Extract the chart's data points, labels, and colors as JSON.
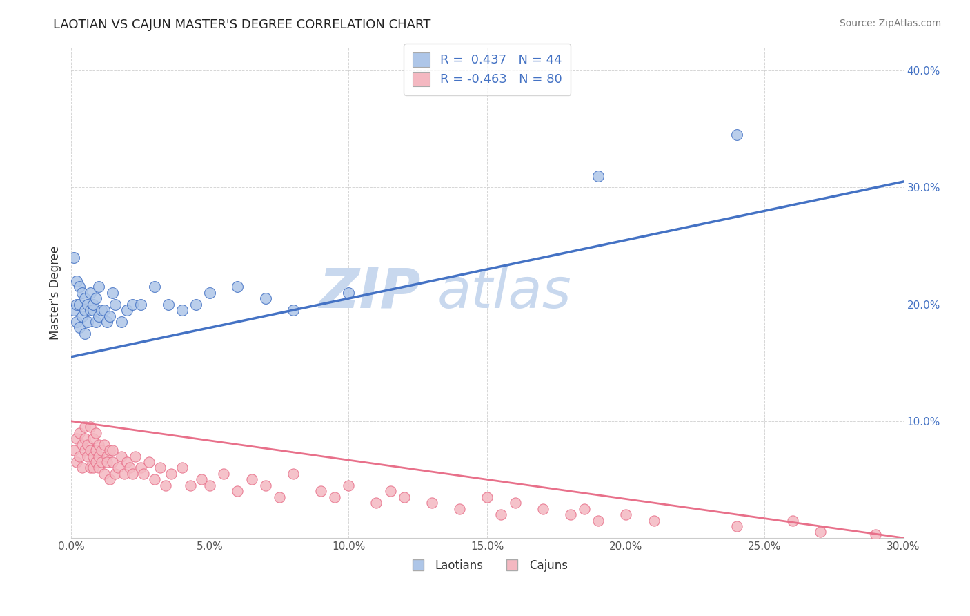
{
  "title": "LAOTIAN VS CAJUN MASTER'S DEGREE CORRELATION CHART",
  "source": "Source: ZipAtlas.com",
  "ylabel": "Master's Degree",
  "xlim": [
    0.0,
    0.3
  ],
  "ylim": [
    0.0,
    0.42
  ],
  "xticks": [
    0.0,
    0.05,
    0.1,
    0.15,
    0.2,
    0.25,
    0.3
  ],
  "yticks": [
    0.0,
    0.1,
    0.2,
    0.3,
    0.4
  ],
  "xtick_labels": [
    "0.0%",
    "5.0%",
    "10.0%",
    "15.0%",
    "20.0%",
    "25.0%",
    "30.0%"
  ],
  "ytick_labels": [
    "",
    "10.0%",
    "20.0%",
    "30.0%",
    "40.0%"
  ],
  "laotian_color": "#aec6e8",
  "cajun_color": "#f4b8c1",
  "line_laotian": "#4472c4",
  "line_cajun": "#e8708a",
  "watermark_color": "#d0dff0",
  "R_laotian": 0.437,
  "N_laotian": 44,
  "R_cajun": -0.463,
  "N_cajun": 80,
  "laotian_line_x0": 0.0,
  "laotian_line_y0": 0.155,
  "laotian_line_x1": 0.3,
  "laotian_line_y1": 0.305,
  "cajun_line_x0": 0.0,
  "cajun_line_y0": 0.1,
  "cajun_line_x1": 0.3,
  "cajun_line_y1": 0.0,
  "laotian_x": [
    0.001,
    0.001,
    0.002,
    0.002,
    0.002,
    0.003,
    0.003,
    0.003,
    0.004,
    0.004,
    0.005,
    0.005,
    0.005,
    0.006,
    0.006,
    0.007,
    0.007,
    0.008,
    0.008,
    0.009,
    0.009,
    0.01,
    0.01,
    0.011,
    0.012,
    0.013,
    0.014,
    0.015,
    0.016,
    0.018,
    0.02,
    0.022,
    0.025,
    0.03,
    0.035,
    0.04,
    0.045,
    0.05,
    0.06,
    0.07,
    0.08,
    0.1,
    0.19,
    0.24
  ],
  "laotian_y": [
    0.195,
    0.24,
    0.22,
    0.185,
    0.2,
    0.215,
    0.18,
    0.2,
    0.19,
    0.21,
    0.175,
    0.205,
    0.195,
    0.2,
    0.185,
    0.195,
    0.21,
    0.195,
    0.2,
    0.185,
    0.205,
    0.19,
    0.215,
    0.195,
    0.195,
    0.185,
    0.19,
    0.21,
    0.2,
    0.185,
    0.195,
    0.2,
    0.2,
    0.215,
    0.2,
    0.195,
    0.2,
    0.21,
    0.215,
    0.205,
    0.195,
    0.21,
    0.31,
    0.345
  ],
  "cajun_x": [
    0.001,
    0.002,
    0.002,
    0.003,
    0.003,
    0.004,
    0.004,
    0.005,
    0.005,
    0.005,
    0.006,
    0.006,
    0.007,
    0.007,
    0.007,
    0.008,
    0.008,
    0.008,
    0.009,
    0.009,
    0.009,
    0.01,
    0.01,
    0.01,
    0.011,
    0.011,
    0.012,
    0.012,
    0.013,
    0.013,
    0.014,
    0.014,
    0.015,
    0.015,
    0.016,
    0.017,
    0.018,
    0.019,
    0.02,
    0.021,
    0.022,
    0.023,
    0.025,
    0.026,
    0.028,
    0.03,
    0.032,
    0.034,
    0.036,
    0.04,
    0.043,
    0.047,
    0.05,
    0.055,
    0.06,
    0.065,
    0.07,
    0.075,
    0.08,
    0.09,
    0.095,
    0.1,
    0.11,
    0.115,
    0.12,
    0.13,
    0.14,
    0.15,
    0.155,
    0.16,
    0.17,
    0.18,
    0.185,
    0.19,
    0.2,
    0.21,
    0.24,
    0.26,
    0.27,
    0.29
  ],
  "cajun_y": [
    0.075,
    0.085,
    0.065,
    0.09,
    0.07,
    0.08,
    0.06,
    0.085,
    0.075,
    0.095,
    0.07,
    0.08,
    0.075,
    0.06,
    0.095,
    0.07,
    0.085,
    0.06,
    0.075,
    0.065,
    0.09,
    0.08,
    0.07,
    0.06,
    0.075,
    0.065,
    0.08,
    0.055,
    0.07,
    0.065,
    0.075,
    0.05,
    0.065,
    0.075,
    0.055,
    0.06,
    0.07,
    0.055,
    0.065,
    0.06,
    0.055,
    0.07,
    0.06,
    0.055,
    0.065,
    0.05,
    0.06,
    0.045,
    0.055,
    0.06,
    0.045,
    0.05,
    0.045,
    0.055,
    0.04,
    0.05,
    0.045,
    0.035,
    0.055,
    0.04,
    0.035,
    0.045,
    0.03,
    0.04,
    0.035,
    0.03,
    0.025,
    0.035,
    0.02,
    0.03,
    0.025,
    0.02,
    0.025,
    0.015,
    0.02,
    0.015,
    0.01,
    0.015,
    0.005,
    0.003
  ]
}
